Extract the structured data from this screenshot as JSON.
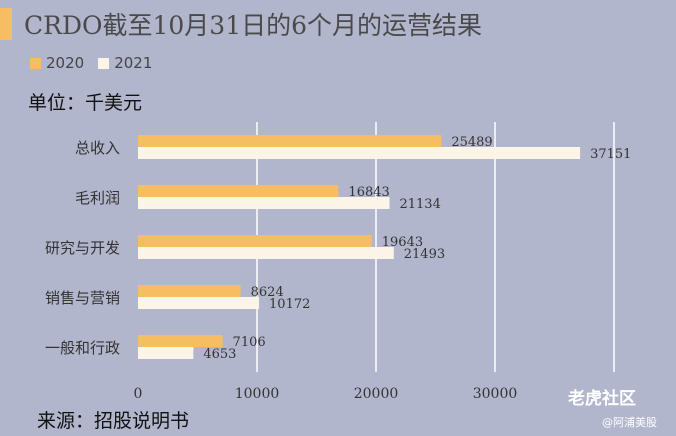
{
  "colors": {
    "accent": "#f6bd62",
    "series_2020": "#f6bd62",
    "series_2021": "#fcf4e6",
    "background": "#b2b6cc",
    "grid": "#ffffff"
  },
  "header": {
    "title": "CRDO截至10月31日的6个月的运营结果"
  },
  "legend": {
    "items": [
      "2020",
      "2021"
    ]
  },
  "unit_text": "单位：千美元",
  "source_text": "来源：招股说明书",
  "watermark": {
    "line1": "老虎社区",
    "line2": "@阿浦美股"
  },
  "chart_data": {
    "type": "bar",
    "orientation": "horizontal",
    "title": "CRDO截至10月31日的6个月的运营结果",
    "xlabel": "",
    "ylabel": "",
    "categories": [
      "总收入",
      "毛利润",
      "研究与开发",
      "销售与营销",
      "一般和行政"
    ],
    "series": [
      {
        "name": "2020",
        "values": [
          25489,
          16843,
          19643,
          8624,
          7106
        ]
      },
      {
        "name": "2021",
        "values": [
          37151,
          21134,
          21493,
          10172,
          4653
        ]
      }
    ],
    "xlim": [
      0,
      40000
    ],
    "xticks": [
      0,
      10000,
      20000,
      30000,
      40000
    ],
    "xtick_labels": [
      "0",
      "10000",
      "20000",
      "30000",
      ""
    ],
    "grid": true,
    "legend_position": "top-left"
  }
}
